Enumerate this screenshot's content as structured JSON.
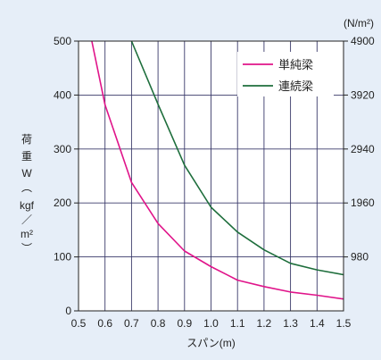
{
  "chart_data": {
    "type": "line",
    "xlabel": "スパン(m)",
    "ylabel_chars": [
      "荷",
      "重",
      "W",
      "︵",
      "kgf",
      "／",
      "m²",
      "︶"
    ],
    "right_unit": "(N/m²)",
    "x_ticks": [
      "0.5",
      "0.6",
      "0.7",
      "0.8",
      "0.9",
      "1.0",
      "1.1",
      "1.2",
      "1.3",
      "1.4",
      "1.5"
    ],
    "x_tick_values": [
      0.5,
      0.6,
      0.7,
      0.8,
      0.9,
      1.0,
      1.1,
      1.2,
      1.3,
      1.4,
      1.5
    ],
    "y_ticks": [
      "0",
      "100",
      "200",
      "300",
      "400",
      "500"
    ],
    "y_tick_values": [
      0,
      100,
      200,
      300,
      400,
      500
    ],
    "y2_ticks": [
      "980",
      "1960",
      "2940",
      "3920",
      "4900"
    ],
    "y2_tick_values": [
      100,
      200,
      300,
      400,
      500
    ],
    "xlim": [
      0.5,
      1.5
    ],
    "ylim": [
      0,
      500
    ],
    "grid": true,
    "legend_position": "top-right",
    "colors": {
      "background": "#e6eef8",
      "plot": "#ffffff",
      "grid": "#3a3a6a"
    },
    "series": [
      {
        "name": "単純梁",
        "color": "#e0148a",
        "x": [
          0.55,
          0.6,
          0.7,
          0.8,
          0.9,
          1.0,
          1.1,
          1.2,
          1.3,
          1.4,
          1.5
        ],
        "y": [
          500,
          382,
          238,
          162,
          111,
          82,
          57,
          45,
          35,
          29,
          22
        ]
      },
      {
        "name": "連続梁",
        "color": "#1e6e3c",
        "x": [
          0.7,
          0.8,
          0.9,
          1.0,
          1.1,
          1.2,
          1.3,
          1.4,
          1.5
        ],
        "y": [
          500,
          383,
          270,
          192,
          146,
          113,
          88,
          76,
          67
        ]
      }
    ]
  }
}
